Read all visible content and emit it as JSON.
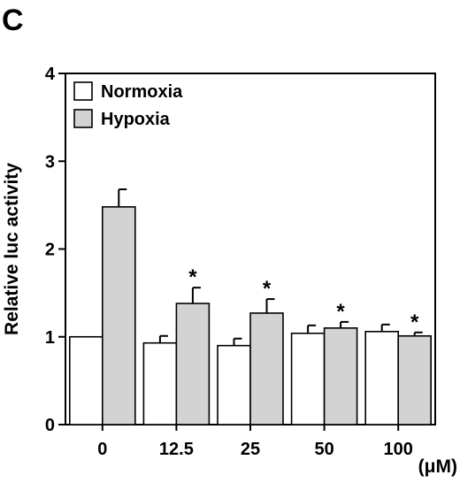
{
  "panel_label": "C",
  "chart_data": {
    "type": "bar",
    "categories": [
      "0",
      "12.5",
      "25",
      "50",
      "100"
    ],
    "series": [
      {
        "name": "Normoxia",
        "values": [
          1.0,
          0.93,
          0.9,
          1.04,
          1.06
        ],
        "errors": [
          0,
          0.08,
          0.08,
          0.09,
          0.08
        ],
        "color": "#ffffff"
      },
      {
        "name": "Hypoxia",
        "values": [
          2.48,
          1.38,
          1.27,
          1.1,
          1.01
        ],
        "errors": [
          0.2,
          0.18,
          0.16,
          0.07,
          0.04
        ],
        "color": "#d3d3d3"
      }
    ],
    "significance": [
      "",
      "*",
      "*",
      "*",
      "*"
    ],
    "significance_series": "Hypoxia",
    "ylabel": "Relative luc activity",
    "x_unit": "(μM)",
    "ylim": [
      0,
      4
    ],
    "yticks": [
      "0",
      "1",
      "2",
      "3",
      "4"
    ],
    "grid": false,
    "legend_position": "top-left"
  }
}
